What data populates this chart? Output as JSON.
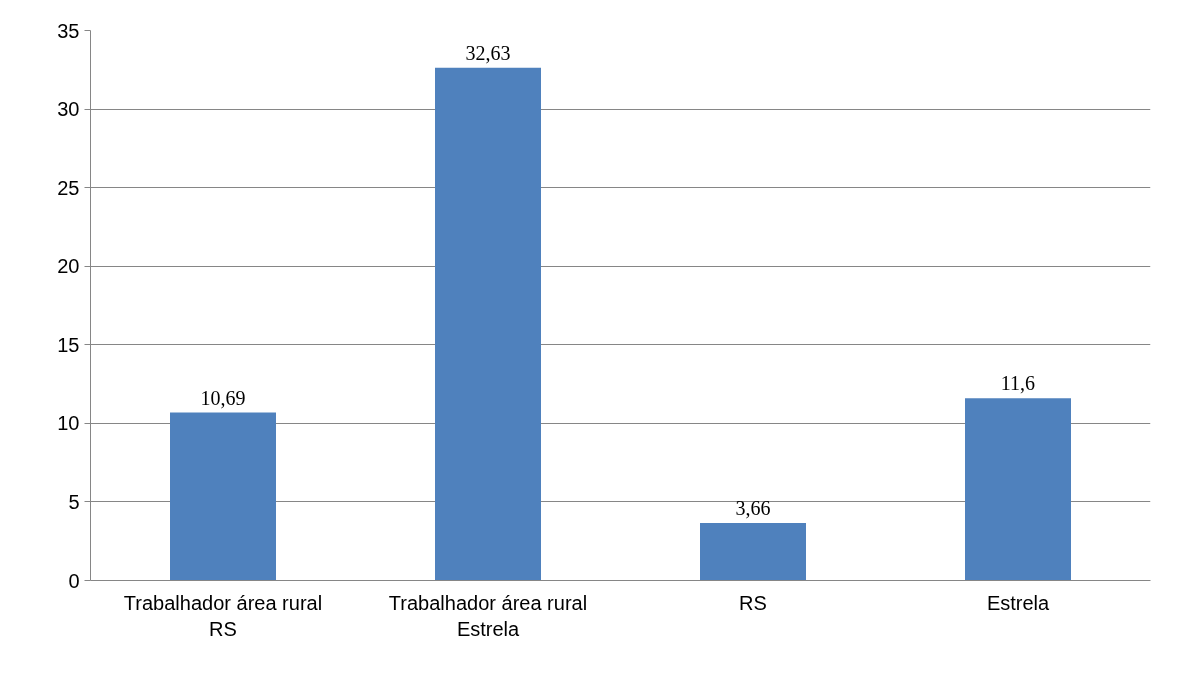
{
  "chart_data": {
    "type": "bar",
    "categories": [
      "Trabalhador área rural RS",
      "Trabalhador área rural Estrela",
      "RS",
      "Estrela"
    ],
    "values": [
      10.69,
      32.63,
      3.66,
      11.6
    ],
    "value_labels": [
      "10,69",
      "32,63",
      "3,66",
      "11,6"
    ],
    "color": "#4f81bd",
    "ylim": [
      0,
      35
    ],
    "yticks": [
      0,
      5,
      10,
      15,
      20,
      25,
      30,
      35
    ],
    "grid": "y"
  }
}
